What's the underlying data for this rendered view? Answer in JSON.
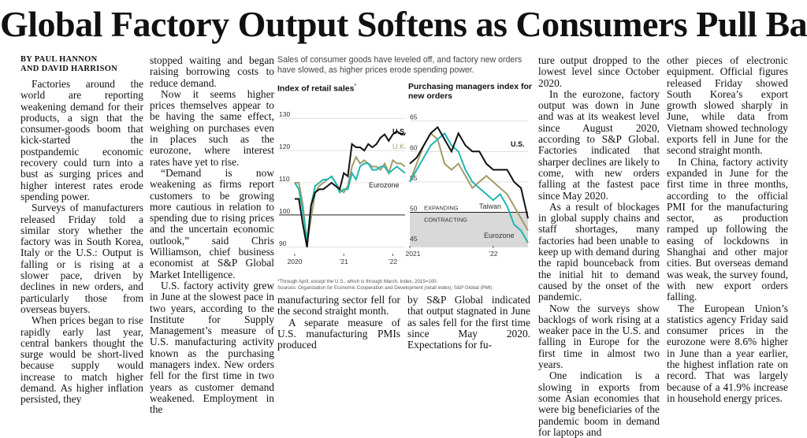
{
  "headline": "Global Factory Output Softens as Consumers Pull Back",
  "byline": {
    "line1": "By Paul Hannon",
    "line2": "And David Harrison"
  },
  "col1": [
    "Factories around the world are reporting weakening demand for their products, a sign that the consumer-goods boom that kick-started the postpandemic economic recovery could turn into a bust as surging prices and higher interest rates erode spending power.",
    "Surveys of manufacturers released Friday told a similar story whether the factory was in South Korea, Italy or the U.S.: Output is falling or is rising at a slower pace, driven by declines in new orders, and particularly those from overseas buyers.",
    "When prices began to rise rapidly early last year, central bankers thought the surge would be short-lived because supply would increase to match higher demand. As higher inflation persisted, they"
  ],
  "col2": [
    "stopped waiting and began raising borrowing costs to reduce demand.",
    "Now it seems higher prices themselves appear to be having the same effect, weighing on purchases even in places such as the eurozone, where interest rates have yet to rise.",
    "“Demand is now weakening as firms report customers to be growing more cautious in relation to spending due to rising prices and the uncertain economic outlook,” said Chris Williamson, chief business economist at S&P Global Market Intelligence.",
    "U.S. factory activity grew in June at the slowest pace in two years, according to the Institute for Supply Management’s measure of U.S. manufacturing activity known as the purchasing managers index. New orders fell for the first time in two years as customer demand weakened. Employment in the"
  ],
  "col3": [
    "manufacturing sector fell for the second straight month.",
    "A separate measure of U.S. manufacturing PMIs produced"
  ],
  "col4": [
    "by S&P Global indicated that output stagnated in June as sales fell for the first time since May 2020. Expectations for fu-"
  ],
  "col5": [
    "ture output dropped to the lowest level since October 2020.",
    "In the eurozone, factory output was down in June and was at its weakest level since August 2020, according to S&P Global. Factories indicated that sharper declines are likely to come, with new orders falling at the fastest pace since May 2020.",
    "As a result of blockages in global supply chains and staff shortages, many factories had been unable to keep up with demand during the rapid bounceback from the initial hit to demand caused by the onset of the pandemic.",
    "Now the surveys show backlogs of work rising at a weaker pace in the U.S. and falling in Europe for the first time in almost two years.",
    "One indication is a slowing in exports from some Asian economies that were big beneficiaries of the pandemic boom in demand for laptops and"
  ],
  "col6": [
    "other pieces of electronic equipment. Official figures released Friday showed South Korea’s export growth slowed sharply in June, while data from Vietnam showed technology exports fell in June for the second straight month.",
    "In China, factory activity expanded in June for the first time in three months, according to the official PMI for the manufacturing sector, as production ramped up following the easing of lockdowns in Shanghai and other major cities. But overseas demand was weak, the survey found, with new export orders falling.",
    "The European Union’s statistics agency Friday said consumer prices in the eurozone were 8.6% higher in June than a year earlier, the highest inflation rate on record. That was largely because of a 41.9% increase in household energy prices."
  ],
  "chart_intro": "Sales of consumer goods have leveled off, and factory new orders have slowed, as higher prices erode spending power.",
  "footnote": "*Through April, except the U.S., which is through March. Index, 2015=100.",
  "sources": "Sources: Organization for Economic Cooperation and Development (retail index); S&P Global (PMI)",
  "colors": {
    "us": "#111111",
    "uk": "#a49a6a",
    "eurozone": "#1fb5b0",
    "taiwan": "#a49a6a",
    "contract_shade": "#d9d9d9"
  },
  "chart_data": [
    {
      "type": "line",
      "title": "Index of retail sales",
      "title_mark": "*",
      "yticks": [
        90,
        100,
        110,
        120,
        130
      ],
      "ylim": [
        88,
        132
      ],
      "xticks": [
        "2020",
        "’21",
        "’22"
      ],
      "x": [
        2020.0,
        2020.083,
        2020.167,
        2020.25,
        2020.333,
        2020.417,
        2020.5,
        2020.583,
        2020.667,
        2020.75,
        2020.833,
        2020.917,
        2021.0,
        2021.083,
        2021.167,
        2021.25,
        2021.333,
        2021.417,
        2021.5,
        2021.583,
        2021.667,
        2021.75,
        2021.833,
        2021.917,
        2022.0,
        2022.083,
        2022.167,
        2022.25
      ],
      "series": [
        {
          "name": "U.S.",
          "values": [
            105,
            105,
            97,
            90,
            103,
            107,
            108,
            108,
            109,
            110,
            109,
            108,
            113,
            112,
            122,
            121,
            121,
            120,
            122,
            121,
            122,
            124,
            125,
            123,
            125,
            126,
            125,
            125
          ]
        },
        {
          "name": "U.K.",
          "values": [
            110,
            110,
            103,
            91,
            99,
            107,
            109,
            110,
            111,
            112,
            110,
            108,
            107,
            109,
            115,
            118,
            116,
            117,
            116,
            115,
            115,
            114,
            116,
            113,
            117,
            116,
            116,
            115
          ]
        },
        {
          "name": "Eurozone",
          "values": [
            110,
            108,
            101,
            92,
            103,
            109,
            110,
            111,
            111,
            112,
            110,
            107,
            108,
            108,
            113,
            111,
            115,
            116,
            116,
            114,
            114,
            115,
            115,
            113,
            114,
            115,
            114,
            113
          ]
        }
      ]
    },
    {
      "type": "line",
      "title": "Purchasing managers index for new orders",
      "yticks": [
        45,
        50,
        55,
        60,
        65
      ],
      "ylim": [
        44.5,
        66
      ],
      "xticks": [
        "2021",
        "’22"
      ],
      "threshold": 50,
      "annotations": [
        "EXPANDING",
        "CONTRACTING"
      ],
      "x": [
        2021.0,
        2021.083,
        2021.167,
        2021.25,
        2021.333,
        2021.417,
        2021.5,
        2021.583,
        2021.667,
        2021.75,
        2021.833,
        2021.917,
        2022.0,
        2022.083,
        2022.167,
        2022.25,
        2022.333,
        2022.417
      ],
      "series": [
        {
          "name": "U.S.",
          "values": [
            58,
            59,
            61,
            63,
            64,
            62,
            60,
            63,
            61,
            60,
            60,
            58,
            57,
            57,
            57,
            55,
            54,
            49
          ]
        },
        {
          "name": "Taiwan",
          "values": [
            55,
            58,
            61,
            63,
            62,
            58,
            57,
            58,
            56,
            54,
            55,
            56,
            55,
            54,
            53,
            51,
            49,
            47
          ]
        },
        {
          "name": "Eurozone",
          "values": [
            55,
            57,
            59,
            61,
            62,
            63,
            61,
            60,
            57,
            55,
            54,
            53,
            52,
            53,
            51,
            48,
            47,
            45
          ]
        }
      ]
    }
  ]
}
